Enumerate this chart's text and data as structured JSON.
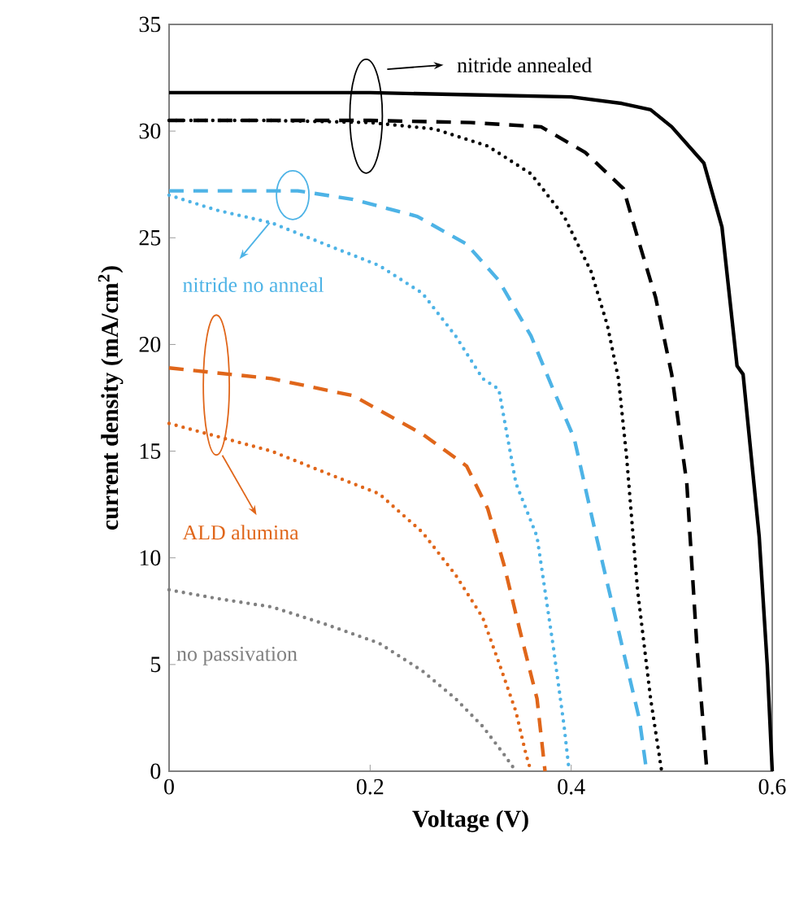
{
  "chart_data": {
    "type": "line",
    "xlabel": "Voltage (V)",
    "ylabel": "current density (mA/cm$^{2}$)",
    "xlim": [
      0,
      0.6
    ],
    "ylim": [
      0,
      35
    ],
    "xticks": [
      0,
      0.2,
      0.4,
      0.6
    ],
    "yticks": [
      0,
      5,
      10,
      15,
      20,
      25,
      30,
      35
    ],
    "grid": false,
    "marker": "none",
    "annotations": [
      "nitride annealed",
      {
        "text": "nitride no anneal",
        "x": 0.1,
        "y": 25.7
      },
      "ALD alumina",
      "no passivation"
    ],
    "series": [
      {
        "color": "#000000",
        "line_style": "solid",
        "x": [
          0,
          0.1,
          0.2,
          0.3,
          0.4,
          0.45,
          0.479,
          0.5,
          0.532,
          0.55,
          0.565,
          0.571,
          0.587,
          0.595,
          0.6
        ],
        "values": [
          31.8,
          31.8,
          31.8,
          31.7,
          31.6,
          31.3,
          31,
          30.2,
          28.5,
          25.5,
          19,
          18.6,
          11,
          5,
          0
        ]
      },
      {
        "color": "#000000",
        "line_style": "dashed",
        "x": [
          0,
          0.1,
          0.2,
          0.3,
          0.37,
          0.414,
          0.452,
          0.468,
          0.484,
          0.5,
          0.515,
          0.525,
          0.535
        ],
        "values": [
          30.5,
          30.5,
          30.5,
          30.4,
          30.2,
          29,
          27.3,
          24.7,
          22.2,
          18.6,
          13.5,
          5.9,
          0
        ]
      },
      {
        "color": "#000000",
        "line_style": "dotted",
        "x": [
          0,
          0.1,
          0.2,
          0.264,
          0.317,
          0.36,
          0.393,
          0.42,
          0.436,
          0.447,
          0.455,
          0.466,
          0.479,
          0.49
        ],
        "values": [
          30.5,
          30.5,
          30.4,
          30.1,
          29.3,
          28,
          26,
          23.4,
          20.9,
          18.4,
          14.8,
          8.5,
          3.4,
          0
        ]
      },
      {
        "color": "#4db3e6",
        "line_style": "dashed",
        "x": [
          0,
          0.128,
          0.183,
          0.247,
          0.296,
          0.328,
          0.36,
          0.382,
          0.403,
          0.425,
          0.447,
          0.468,
          0.475
        ],
        "values": [
          27.2,
          27.2,
          26.8,
          26,
          24.7,
          23,
          20.4,
          17.9,
          15.6,
          11,
          6.6,
          2.4,
          0
        ]
      },
      {
        "color": "#4db3e6",
        "line_style": "dotted",
        "x": [
          0,
          0.047,
          0.102,
          0.155,
          0.209,
          0.252,
          0.285,
          0.312,
          0.328,
          0.345,
          0.366,
          0.382,
          0.393,
          0.398
        ],
        "values": [
          27,
          26.3,
          25.7,
          24.7,
          23.7,
          22.4,
          20.4,
          18.4,
          17.9,
          13.5,
          11,
          5.9,
          2.1,
          0
        ]
      },
      {
        "color": "#e0661a",
        "line_style": "dashed",
        "x": [
          0,
          0.102,
          0.183,
          0.252,
          0.296,
          0.317,
          0.333,
          0.35,
          0.366,
          0.374
        ],
        "values": [
          18.9,
          18.4,
          17.6,
          15.8,
          14.3,
          12.3,
          9.7,
          6.4,
          3.4,
          0
        ]
      },
      {
        "color": "#e0661a",
        "line_style": "dotted",
        "x": [
          0,
          0.047,
          0.102,
          0.155,
          0.209,
          0.252,
          0.285,
          0.312,
          0.328,
          0.345,
          0.355,
          0.36
        ],
        "values": [
          16.3,
          15.7,
          15,
          14,
          13,
          11.2,
          9.2,
          7.2,
          5.1,
          2.8,
          0.8,
          0
        ]
      },
      {
        "color": "#808080",
        "line_style": "dotted",
        "x": [
          0,
          0.047,
          0.102,
          0.155,
          0.209,
          0.252,
          0.285,
          0.312,
          0.333,
          0.345
        ],
        "values": [
          8.5,
          8.1,
          7.7,
          6.9,
          6,
          4.7,
          3.4,
          2.1,
          0.8,
          0
        ]
      }
    ]
  }
}
